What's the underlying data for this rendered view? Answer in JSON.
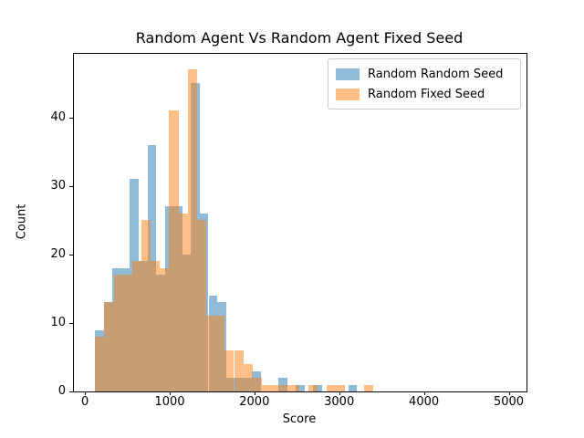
{
  "figure": {
    "title": "Random Agent Vs Random Agent Fixed Seed",
    "xlabel": "Score",
    "ylabel": "Count"
  },
  "legend": {
    "position": "upper right",
    "items": [
      {
        "label": "Random Random Seed",
        "swatch": "#8fbbd9"
      },
      {
        "label": "Random Fixed Seed",
        "swatch": "#ffbf86"
      }
    ]
  },
  "axes": {
    "xlim": [
      -130,
      5210
    ],
    "ylim": [
      0,
      49.33
    ],
    "x_ticks": [
      {
        "label": "0",
        "value": 0
      },
      {
        "label": "1000",
        "value": 1000
      },
      {
        "label": "2000",
        "value": 2000
      },
      {
        "label": "3000",
        "value": 3000
      },
      {
        "label": "4000",
        "value": 4000
      },
      {
        "label": "5000",
        "value": 5000
      }
    ],
    "y_ticks": [
      {
        "label": "0",
        "value": 0
      },
      {
        "label": "10",
        "value": 10
      },
      {
        "label": "20",
        "value": 20
      },
      {
        "label": "30",
        "value": 30
      },
      {
        "label": "40",
        "value": 40
      }
    ]
  },
  "chart_data": {
    "type": "histogram",
    "title": "Random Agent Vs Random Agent Fixed Seed",
    "xlabel": "Score",
    "ylabel": "Count",
    "grid": false,
    "legend_position": "upper right",
    "overlap_color": "#c79d73",
    "series": [
      {
        "id": "random-random-seed",
        "name": "Random Random Seed",
        "color": "#1f77b4",
        "alpha": 0.5,
        "composited_color": "#8fbbd9",
        "bin_start": 119,
        "bin_width": 103,
        "counts": [
          9,
          13,
          18,
          18,
          31,
          19,
          36,
          17,
          27,
          27,
          20,
          45,
          26,
          14,
          13,
          2,
          2,
          2,
          3,
          0,
          0,
          2,
          0,
          1,
          0,
          1,
          0,
          0,
          0,
          1
        ]
      },
      {
        "id": "random-fixed-seed",
        "name": "Random Fixed Seed",
        "color": "#ff7f0e",
        "alpha": 0.5,
        "composited_color": "#ffbf86",
        "bin_start": 120,
        "bin_width": 109.3,
        "counts": [
          8,
          13,
          17,
          17,
          19,
          25,
          19,
          18,
          41,
          26,
          47,
          25,
          11,
          11,
          6,
          6,
          4,
          2,
          1,
          1,
          1,
          1,
          0,
          1,
          0,
          1,
          1,
          0,
          0,
          1
        ]
      }
    ]
  }
}
